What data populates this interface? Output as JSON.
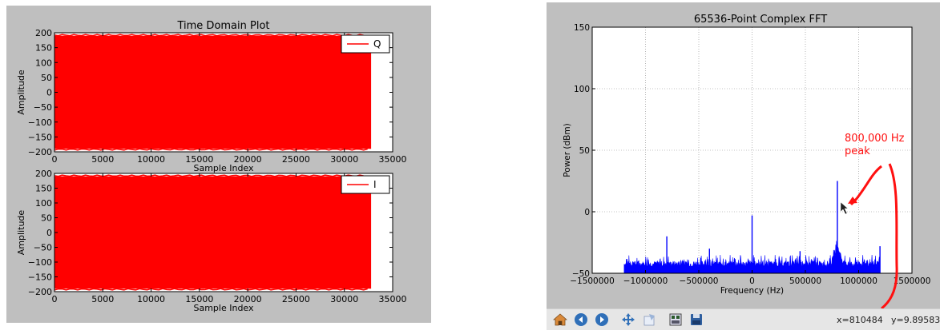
{
  "left": {
    "title": "Time Domain Plot",
    "top_plot": {
      "legend": "Q",
      "ylabel": "Amplitude",
      "xlabel": "Sample Index"
    },
    "bottom_plot": {
      "legend": "I",
      "ylabel": "Amplitude",
      "xlabel": "Sample Index"
    }
  },
  "right": {
    "title": "65536-Point Complex FFT",
    "xlabel": "Frequency (Hz)",
    "ylabel": "Power (dBm)",
    "annotation_line1": "800,000 Hz",
    "annotation_line2": "peak"
  },
  "toolbar": {
    "icons": [
      "home-icon",
      "back-icon",
      "forward-icon",
      "pan-icon",
      "zoom-icon",
      "subplots-icon",
      "save-icon"
    ],
    "x_readout": "x=810484",
    "y_readout": "y=9.89583"
  },
  "chart_data": [
    {
      "type": "line",
      "title": "Time Domain Plot",
      "xlabel": "Sample Index",
      "ylabel": "Amplitude",
      "series": [
        {
          "name": "Q",
          "color": "#ff0000"
        }
      ],
      "x_range": [
        0,
        32768
      ],
      "y_range": [
        -190,
        190
      ],
      "xlim": [
        0,
        35000
      ],
      "ylim": [
        -200,
        200
      ],
      "xticks": [
        0,
        5000,
        10000,
        15000,
        20000,
        25000,
        30000,
        35000
      ],
      "yticks": [
        200,
        150,
        100,
        50,
        0,
        -50,
        -100,
        -150,
        -200
      ],
      "legend": "top-right"
    },
    {
      "type": "line",
      "xlabel": "Sample Index",
      "ylabel": "Amplitude",
      "series": [
        {
          "name": "I",
          "color": "#ff0000"
        }
      ],
      "x_range": [
        0,
        32768
      ],
      "y_range": [
        -190,
        190
      ],
      "xlim": [
        0,
        35000
      ],
      "ylim": [
        -200,
        200
      ],
      "xticks": [
        0,
        5000,
        10000,
        15000,
        20000,
        25000,
        30000,
        35000
      ],
      "yticks": [
        200,
        150,
        100,
        50,
        0,
        -50,
        -100,
        -150,
        -200
      ],
      "legend": "top-right"
    },
    {
      "type": "line",
      "title": "65536-Point Complex FFT",
      "xlabel": "Frequency (Hz)",
      "ylabel": "Power (dBm)",
      "xlim": [
        -1500000,
        1500000
      ],
      "ylim": [
        -50,
        150
      ],
      "xticks": [
        -1500000,
        -1000000,
        -500000,
        0,
        500000,
        1000000,
        1500000
      ],
      "yticks": [
        150,
        100,
        50,
        0,
        -50
      ],
      "grid": true,
      "series": [
        {
          "color": "#0000ff"
        }
      ],
      "noise_floor": -45,
      "noise_top": -35,
      "peaks": [
        {
          "x": 800000,
          "y": 25
        },
        {
          "x": 0,
          "y": -3
        },
        {
          "x": -800000,
          "y": -20
        },
        {
          "x": -400000,
          "y": -30
        },
        {
          "x": 450000,
          "y": -32
        },
        {
          "x": 1200000,
          "y": -28
        }
      ],
      "data_range_x": [
        -1200000,
        1200000
      ]
    }
  ]
}
